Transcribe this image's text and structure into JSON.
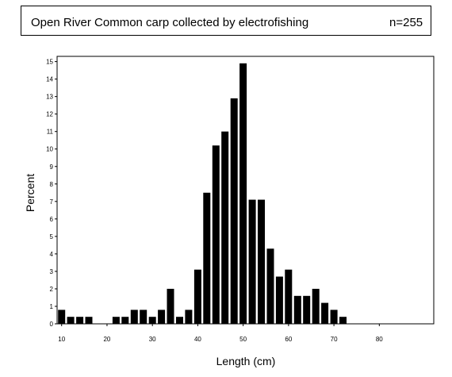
{
  "chart_data": {
    "type": "bar",
    "title": "Open River Common carp collected by electrofishing",
    "annotation": "n=255",
    "xlabel": "Length (cm)",
    "ylabel": "Percent",
    "xlim": [
      9,
      92
    ],
    "ylim": [
      0,
      15.3
    ],
    "bin_width": 2,
    "x_ticks": [
      10,
      20,
      30,
      40,
      50,
      60,
      70,
      80
    ],
    "y_ticks": [
      0,
      1,
      2,
      3,
      4,
      5,
      6,
      7,
      8,
      9,
      10,
      11,
      12,
      13,
      14,
      15
    ],
    "grid": false,
    "bar_color": "#000000",
    "x": [
      10,
      12,
      14,
      16,
      18,
      20,
      22,
      24,
      26,
      28,
      30,
      32,
      34,
      36,
      38,
      40,
      42,
      44,
      46,
      48,
      50,
      52,
      54,
      56,
      58,
      60,
      62,
      64,
      66,
      68,
      70,
      72
    ],
    "values": [
      0.8,
      0.4,
      0.4,
      0.4,
      0,
      0,
      0.4,
      0.4,
      0.8,
      0.8,
      0.4,
      0.8,
      2.0,
      0.4,
      0.8,
      3.1,
      7.5,
      10.2,
      11.0,
      12.9,
      14.9,
      7.1,
      7.1,
      4.3,
      2.7,
      3.1,
      1.6,
      1.6,
      2.0,
      1.2,
      0.8,
      0.4
    ]
  }
}
